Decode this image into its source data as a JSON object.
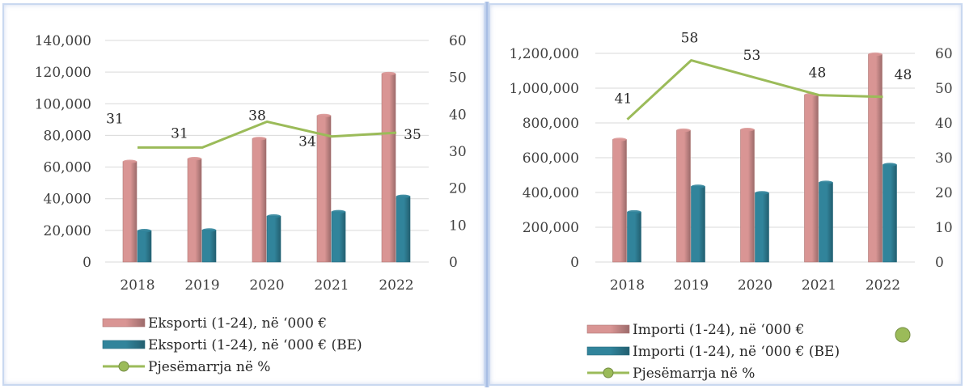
{
  "chart_data": [
    {
      "type": "bar",
      "categories": [
        "2018",
        "2019",
        "2020",
        "2021",
        "2022"
      ],
      "series": [
        {
          "name": "Eksporti (1-24), në ‘000 €",
          "axis": "left",
          "color": "#d99594",
          "values": [
            63500,
            65300,
            78000,
            92500,
            119000
          ]
        },
        {
          "name": "Eksporti (1-24), në ‘000 € (BE)",
          "axis": "left",
          "color": "#31849b",
          "values": [
            19800,
            20200,
            29000,
            31800,
            41500
          ]
        },
        {
          "name": "Pjesëmarrja në %",
          "type": "line",
          "axis": "right",
          "color": "#9bbb59",
          "values": [
            31,
            31,
            38,
            34,
            35
          ],
          "labels": [
            "31",
            "31",
            "38",
            "34",
            "35"
          ]
        }
      ],
      "y_left": {
        "min": 0,
        "max": 140000,
        "step": 20000,
        "ticks": [
          "0",
          "20,000",
          "40,000",
          "60,000",
          "80,000",
          "100,000",
          "120,000",
          "140,000"
        ]
      },
      "y_right": {
        "min": 0,
        "max": 60,
        "step": 10,
        "ticks": [
          "0",
          "10",
          "20",
          "30",
          "40",
          "50",
          "60"
        ]
      },
      "legend_position": "bottom",
      "grid": true
    },
    {
      "type": "bar",
      "categories": [
        "2018",
        "2019",
        "2020",
        "2021",
        "2022"
      ],
      "series": [
        {
          "name": "Importi (1-24), në ‘000 €",
          "axis": "left",
          "color": "#d99594",
          "values": [
            705000,
            758000,
            762000,
            962000,
            1195000
          ]
        },
        {
          "name": "Importi (1-24), në ‘000 € (BE)",
          "axis": "left",
          "color": "#31849b",
          "values": [
            288000,
            435000,
            398000,
            458000,
            560000
          ]
        },
        {
          "name": "Pjesëmarrja në %",
          "type": "line",
          "axis": "right",
          "color": "#9bbb59",
          "values": [
            41,
            58,
            53,
            48,
            47.5
          ],
          "labels": [
            "41",
            "58",
            "53",
            "48",
            "48"
          ]
        }
      ],
      "y_left": {
        "min": 0,
        "max": 1200000,
        "step": 200000,
        "ticks": [
          "0",
          "200,000",
          "400,000",
          "600,000",
          "800,000",
          "1,000,000",
          "1,200,000"
        ]
      },
      "y_right": {
        "min": 0,
        "max": 60,
        "step": 10,
        "ticks": [
          "0",
          "10",
          "20",
          "30",
          "40",
          "50",
          "60"
        ]
      },
      "legend_position": "bottom",
      "grid": true
    }
  ]
}
